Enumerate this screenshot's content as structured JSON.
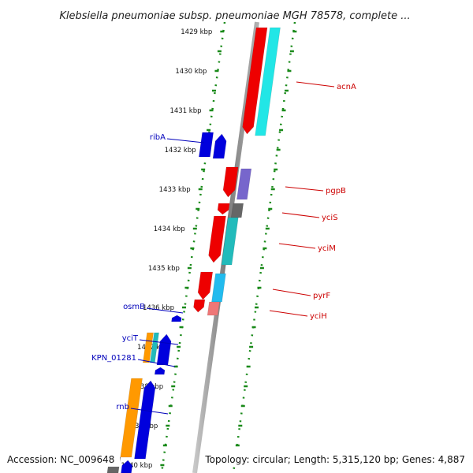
{
  "title": "Klebsiella pneumoniae subsp. pneumoniae MGH 78578, complete ...",
  "ticks": [
    "1429 kbp",
    "1430 kbp",
    "1431 kbp",
    "1432 kbp",
    "1433 kbp",
    "1434 kbp",
    "1435 kbp",
    "1436 kbp",
    "1437 kbp",
    "1438 kbp",
    "1439 kbp",
    "1440 kbp"
  ],
  "genes_forward": [
    {
      "label": "acnA"
    },
    {
      "label": "pgpB"
    },
    {
      "label": "yciS"
    },
    {
      "label": "yciM"
    },
    {
      "label": "pyrF"
    },
    {
      "label": "yciH"
    }
  ],
  "genes_reverse": [
    {
      "label": "ribA"
    },
    {
      "label": "osmB"
    },
    {
      "label": "yciT"
    },
    {
      "label": "KPN_01281"
    },
    {
      "label": "rnb"
    }
  ],
  "footer": {
    "accession": "Accession: NC_009648",
    "topology": "Topology: circular; Length: 5,315,120 bp; Genes: 4,887"
  },
  "colors": {
    "backbone": "#8c8c8c",
    "ruler_dots": "#1a8a1a",
    "forward_label": "#cc0000",
    "reverse_label": "#0000bb",
    "red": "#ee0000",
    "cyan": "#22e6e6",
    "blue": "#0000dd",
    "orange": "#ff9900",
    "purple": "#7766cc",
    "gray": "#666666",
    "teal": "#22bbbb",
    "skyblue": "#22bbee",
    "pink": "#ee7777"
  }
}
